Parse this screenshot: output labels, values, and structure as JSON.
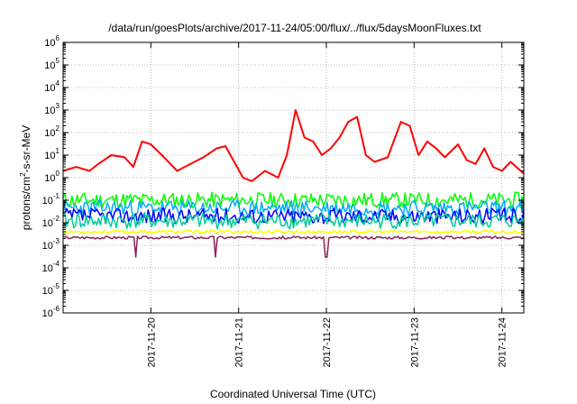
{
  "chart_data": {
    "type": "line",
    "title": "/data/run/goesPlots/archive/2017-11-24/05:00/flux/../flux/5daysMoonFluxes.txt",
    "xlabel": "Coordinated Universal Time (UTC)",
    "ylabel_parts": [
      "protons/cm",
      "2",
      "-s-sr-MeV"
    ],
    "yscale": "log",
    "ylim_exponents": [
      -6,
      6
    ],
    "y_tick_exponents": [
      6,
      5,
      4,
      3,
      2,
      1,
      0,
      -1,
      -2,
      -3,
      -4,
      -5,
      -6
    ],
    "y_tick_base": "10",
    "xlim_days": [
      -1.0,
      4.25
    ],
    "x_ticks": [
      {
        "day": 0,
        "label": "2017-11-20"
      },
      {
        "day": 1,
        "label": "2017-11-21"
      },
      {
        "day": 2,
        "label": "2017-11-22"
      },
      {
        "day": 3,
        "label": "2017-11-23"
      },
      {
        "day": 4,
        "label": "2017-11-24"
      }
    ],
    "grid": true,
    "series": [
      {
        "color": "#ff0000",
        "width": 2,
        "x": [
          -1.0,
          -0.85,
          -0.7,
          -0.6,
          -0.45,
          -0.3,
          -0.2,
          -0.1,
          0.0,
          0.15,
          0.3,
          0.45,
          0.6,
          0.75,
          0.85,
          0.95,
          1.05,
          1.15,
          1.3,
          1.45,
          1.55,
          1.65,
          1.75,
          1.85,
          1.95,
          2.05,
          2.15,
          2.25,
          2.35,
          2.45,
          2.55,
          2.7,
          2.85,
          2.95,
          3.05,
          3.15,
          3.25,
          3.35,
          3.5,
          3.6,
          3.7,
          3.8,
          3.9,
          4.0,
          4.1,
          4.25
        ],
        "y": [
          2,
          3,
          2,
          4,
          10,
          8,
          3,
          40,
          30,
          8,
          2,
          4,
          8,
          20,
          25,
          5,
          1,
          0.7,
          2,
          1,
          10,
          1000,
          60,
          40,
          10,
          20,
          60,
          300,
          500,
          10,
          5,
          8,
          300,
          200,
          10,
          40,
          20,
          8,
          30,
          6,
          4,
          20,
          3,
          2,
          5,
          1.5
        ]
      },
      {
        "color": "#00ff00",
        "width": 1.5,
        "base": 0.1,
        "amp": 0.35,
        "seed": 11
      },
      {
        "color": "#00aaff",
        "width": 1.5,
        "base": 0.045,
        "amp": 0.35,
        "seed": 23
      },
      {
        "color": "#0000ff",
        "width": 1.5,
        "base": 0.02,
        "amp": 0.35,
        "seed": 37
      },
      {
        "color": "#00cc99",
        "width": 1.5,
        "base": 0.012,
        "amp": 0.35,
        "seed": 41
      },
      {
        "color": "#ffff00",
        "width": 1.5,
        "base": 0.004,
        "amp": 0.08,
        "seed": 53
      },
      {
        "color": "#8b2252",
        "width": 1.5,
        "base": 0.0022,
        "amp": 0.06,
        "seed": 67,
        "dips_x": [
          -0.18,
          0.73,
          2.0
        ],
        "dip_y": 0.0003
      }
    ]
  }
}
